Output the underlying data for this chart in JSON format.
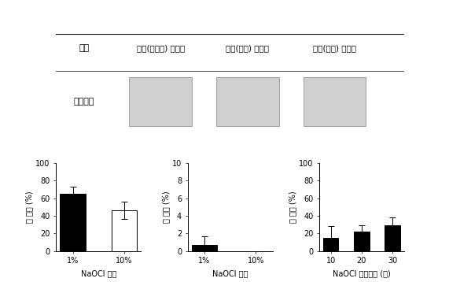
{
  "top_labels": [
    "종자",
    "완숙(진노랑) 꼬투리",
    "미숙(노랑) 꼬투리",
    "미숙(초록) 꼬투리"
  ],
  "row_label": "치상상태",
  "chart1": {
    "categories": [
      "1%",
      "10%"
    ],
    "values": [
      65,
      46
    ],
    "errors": [
      8,
      10
    ],
    "colors": [
      "#000000",
      "#ffffff"
    ],
    "ylabel": "발 아율 (%)",
    "xlabel": "NaOCl 농도",
    "ylim": [
      0,
      100
    ],
    "yticks": [
      0,
      20,
      40,
      60,
      80,
      100
    ]
  },
  "chart2": {
    "categories": [
      "1%",
      "10%"
    ],
    "values": [
      0.7,
      0
    ],
    "errors": [
      1.0,
      0
    ],
    "colors": [
      "#000000",
      "#ffffff"
    ],
    "ylabel": "오 염율 (%)",
    "xlabel": "NaOCl 농도",
    "ylim": [
      0,
      10
    ],
    "yticks": [
      0,
      2,
      4,
      6,
      8,
      10
    ]
  },
  "chart3": {
    "categories": [
      "10",
      "20",
      "30"
    ],
    "values": [
      15,
      22,
      29
    ],
    "errors": [
      13,
      7,
      9
    ],
    "colors": [
      "#000000",
      "#000000",
      "#000000"
    ],
    "ylabel": "발 아율 (%)",
    "xlabel": "NaOCl 처리시간 (분)",
    "ylim": [
      0,
      100
    ],
    "yticks": [
      0,
      20,
      40,
      60,
      80,
      100
    ]
  },
  "bg_color": "#ffffff",
  "text_color": "#000000",
  "font_size": 7
}
